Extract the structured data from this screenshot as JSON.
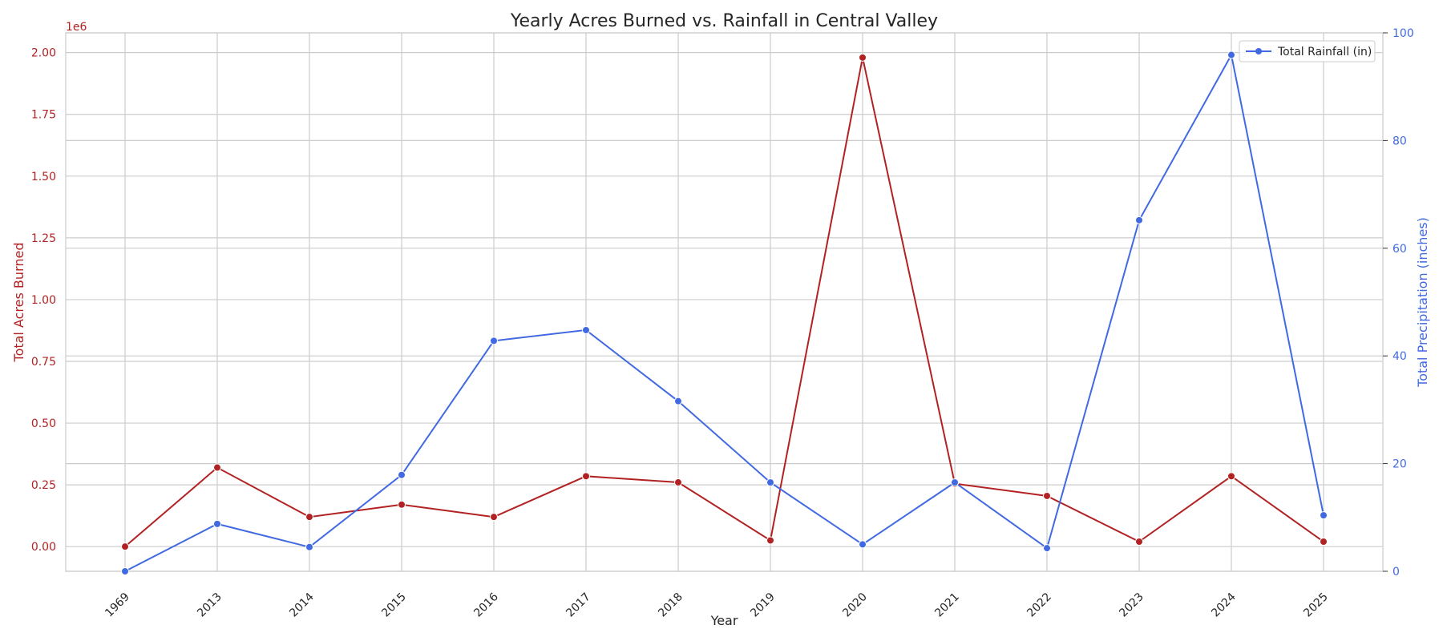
{
  "chart_data": {
    "type": "line",
    "title": "Yearly Acres Burned vs. Rainfall in Central Valley",
    "xlabel": "Year",
    "categories": [
      "1969",
      "2013",
      "2014",
      "2015",
      "2016",
      "2017",
      "2018",
      "2019",
      "2020",
      "2021",
      "2022",
      "2023",
      "2024",
      "2025"
    ],
    "y_left": {
      "label": "Total Acres Burned",
      "scale_note": "1e6",
      "ylim": [
        -0.1,
        2.08
      ],
      "ticks": [
        0.0,
        0.25,
        0.5,
        0.75,
        1.0,
        1.25,
        1.5,
        1.75,
        2.0
      ],
      "tick_labels": [
        "0.00",
        "0.25",
        "0.50",
        "0.75",
        "1.00",
        "1.25",
        "1.50",
        "1.75",
        "2.00"
      ],
      "color": "#b22222"
    },
    "y_right": {
      "label": "Total Precipitation (inches)",
      "ylim": [
        0,
        100
      ],
      "ticks": [
        0,
        20,
        40,
        60,
        80,
        100
      ],
      "tick_labels": [
        "0",
        "20",
        "40",
        "60",
        "80",
        "100"
      ],
      "color": "#4169e1"
    },
    "series": [
      {
        "axis": "left",
        "color": "#b22222",
        "values": [
          0.0,
          0.32,
          0.12,
          0.17,
          0.12,
          0.285,
          0.26,
          0.025,
          1.98,
          0.255,
          0.205,
          0.02,
          0.285,
          0.02
        ]
      },
      {
        "name": "Total Rainfall (in)",
        "axis": "right",
        "color": "#4169e1",
        "values": [
          0.0,
          8.8,
          4.5,
          17.9,
          42.8,
          44.8,
          31.6,
          16.5,
          5.0,
          16.5,
          4.3,
          65.2,
          95.9,
          10.4
        ]
      }
    ],
    "grid": true,
    "legend_position": "top-right"
  }
}
